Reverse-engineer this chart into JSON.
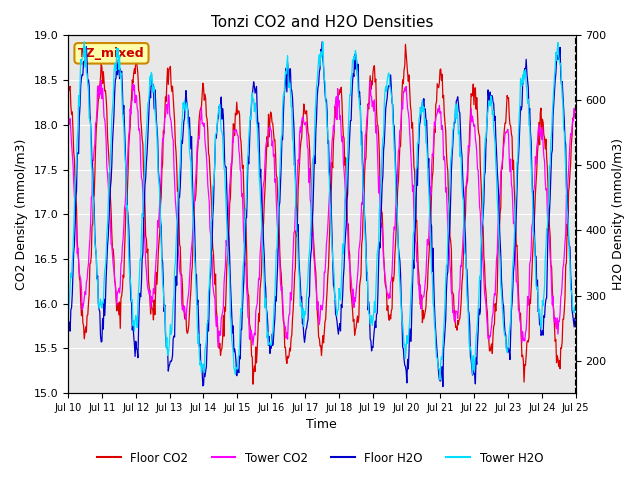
{
  "title": "Tonzi CO2 and H2O Densities",
  "xlabel": "Time",
  "ylabel_left": "CO2 Density (mmol/m3)",
  "ylabel_right": "H2O Density (mmol/m3)",
  "annotation": "TZ_mixed",
  "annotation_facecolor": "#ffffaa",
  "annotation_edgecolor": "#cc8800",
  "annotation_textcolor": "#cc0000",
  "ylim_left": [
    15.0,
    19.0
  ],
  "ylim_right": [
    150,
    700
  ],
  "background_color": "#e8e8e8",
  "colors": {
    "floor_co2": "#dd0000",
    "tower_co2": "#ff00ff",
    "floor_h2o": "#0000cc",
    "tower_h2o": "#00ddff"
  },
  "legend_labels": [
    "Floor CO2",
    "Tower CO2",
    "Floor H2O",
    "Tower H2O"
  ],
  "x_tick_labels": [
    "Jul 10",
    "Jul 11",
    "Jul 12",
    "Jul 13",
    "Jul 14",
    "Jul 15",
    "Jul 16",
    "Jul 17",
    "Jul 18",
    "Jul 19",
    "Jul 20",
    "Jul 21",
    "Jul 22",
    "Jul 23",
    "Jul 24",
    "Jul 25"
  ],
  "n_days": 15,
  "points_per_day": 48
}
